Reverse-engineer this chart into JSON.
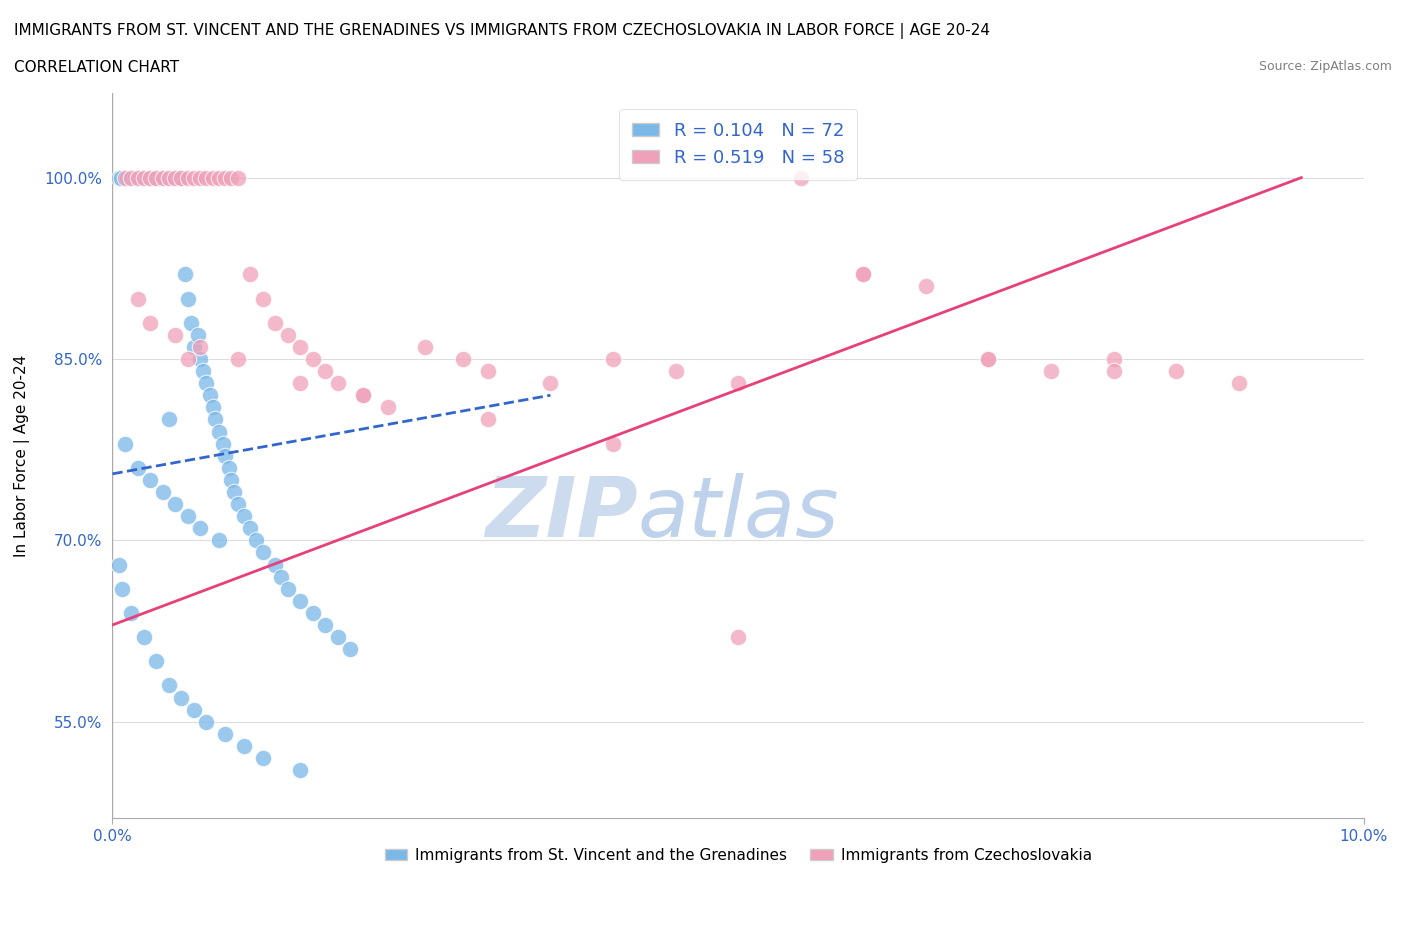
{
  "title_line1": "IMMIGRANTS FROM ST. VINCENT AND THE GRENADINES VS IMMIGRANTS FROM CZECHOSLOVAKIA IN LABOR FORCE | AGE 20-24",
  "title_line2": "CORRELATION CHART",
  "source_text": "Source: ZipAtlas.com",
  "ylabel": "In Labor Force | Age 20-24",
  "xlim": [
    0.0,
    10.0
  ],
  "ylim": [
    47.0,
    107.0
  ],
  "y_ticks": [
    55.0,
    70.0,
    85.0,
    100.0
  ],
  "y_tick_labels": [
    "55.0%",
    "70.0%",
    "85.0%",
    "100.0%"
  ],
  "R_blue": 0.104,
  "N_blue": 72,
  "R_pink": 0.519,
  "N_pink": 58,
  "color_blue": "#7ab8e8",
  "color_pink": "#f0a0b8",
  "color_trend_blue": "#3366cc",
  "color_trend_pink": "#e8407a",
  "color_axis": "#aaaaaa",
  "color_grid": "#dddddd",
  "color_tick_label": "#3366cc",
  "watermark_zip_color": "#c8d8ee",
  "watermark_atlas_color": "#b8d0e8",
  "legend_label_blue": "Immigrants from St. Vincent and the Grenadines",
  "legend_label_pink": "Immigrants from Czechoslovakia",
  "blue_scatter_x": [
    0.05,
    0.07,
    0.12,
    0.15,
    0.18,
    0.2,
    0.22,
    0.25,
    0.28,
    0.3,
    0.33,
    0.35,
    0.38,
    0.4,
    0.42,
    0.45,
    0.48,
    0.5,
    0.52,
    0.55,
    0.58,
    0.6,
    0.63,
    0.65,
    0.68,
    0.7,
    0.72,
    0.75,
    0.78,
    0.8,
    0.82,
    0.85,
    0.88,
    0.9,
    0.93,
    0.95,
    0.97,
    1.0,
    1.05,
    1.1,
    1.15,
    1.2,
    1.3,
    1.35,
    1.4,
    1.5,
    1.6,
    1.7,
    1.8,
    1.9,
    0.1,
    0.2,
    0.3,
    0.4,
    0.5,
    0.6,
    0.7,
    0.85,
    0.05,
    0.08,
    0.15,
    0.25,
    0.35,
    0.45,
    0.55,
    0.65,
    0.75,
    0.9,
    1.05,
    1.2,
    1.5,
    0.45
  ],
  "blue_scatter_y": [
    100.0,
    100.0,
    100.0,
    100.0,
    100.0,
    100.0,
    100.0,
    100.0,
    100.0,
    100.0,
    100.0,
    100.0,
    100.0,
    100.0,
    100.0,
    100.0,
    100.0,
    100.0,
    100.0,
    100.0,
    92.0,
    90.0,
    88.0,
    86.0,
    87.0,
    85.0,
    84.0,
    83.0,
    82.0,
    81.0,
    80.0,
    79.0,
    78.0,
    77.0,
    76.0,
    75.0,
    74.0,
    73.0,
    72.0,
    71.0,
    70.0,
    69.0,
    68.0,
    67.0,
    66.0,
    65.0,
    64.0,
    63.0,
    62.0,
    61.0,
    78.0,
    76.0,
    75.0,
    74.0,
    73.0,
    72.0,
    71.0,
    70.0,
    68.0,
    66.0,
    64.0,
    62.0,
    60.0,
    58.0,
    57.0,
    56.0,
    55.0,
    54.0,
    53.0,
    52.0,
    51.0,
    80.0
  ],
  "pink_scatter_x": [
    0.1,
    0.15,
    0.2,
    0.25,
    0.3,
    0.35,
    0.4,
    0.45,
    0.5,
    0.55,
    0.6,
    0.65,
    0.7,
    0.75,
    0.8,
    0.85,
    0.9,
    0.95,
    1.0,
    1.1,
    1.2,
    1.3,
    1.4,
    1.5,
    1.6,
    1.7,
    1.8,
    2.0,
    2.2,
    2.5,
    2.8,
    3.0,
    3.5,
    4.0,
    4.5,
    5.0,
    5.5,
    6.0,
    6.5,
    7.0,
    7.5,
    8.0,
    8.5,
    9.0,
    0.3,
    0.5,
    0.7,
    1.0,
    1.5,
    2.0,
    3.0,
    4.0,
    5.0,
    6.0,
    7.0,
    8.0,
    0.2,
    0.6
  ],
  "pink_scatter_y": [
    100.0,
    100.0,
    100.0,
    100.0,
    100.0,
    100.0,
    100.0,
    100.0,
    100.0,
    100.0,
    100.0,
    100.0,
    100.0,
    100.0,
    100.0,
    100.0,
    100.0,
    100.0,
    100.0,
    92.0,
    90.0,
    88.0,
    87.0,
    86.0,
    85.0,
    84.0,
    83.0,
    82.0,
    81.0,
    86.0,
    85.0,
    84.0,
    83.0,
    85.0,
    84.0,
    83.0,
    100.0,
    92.0,
    91.0,
    85.0,
    84.0,
    85.0,
    84.0,
    83.0,
    88.0,
    87.0,
    86.0,
    85.0,
    83.0,
    82.0,
    80.0,
    78.0,
    62.0,
    92.0,
    85.0,
    84.0,
    90.0,
    85.0
  ],
  "blue_trend_x": [
    0.0,
    3.5
  ],
  "blue_trend_y": [
    75.5,
    82.0
  ],
  "pink_trend_x": [
    0.0,
    9.5
  ],
  "pink_trend_y": [
    63.0,
    100.0
  ]
}
